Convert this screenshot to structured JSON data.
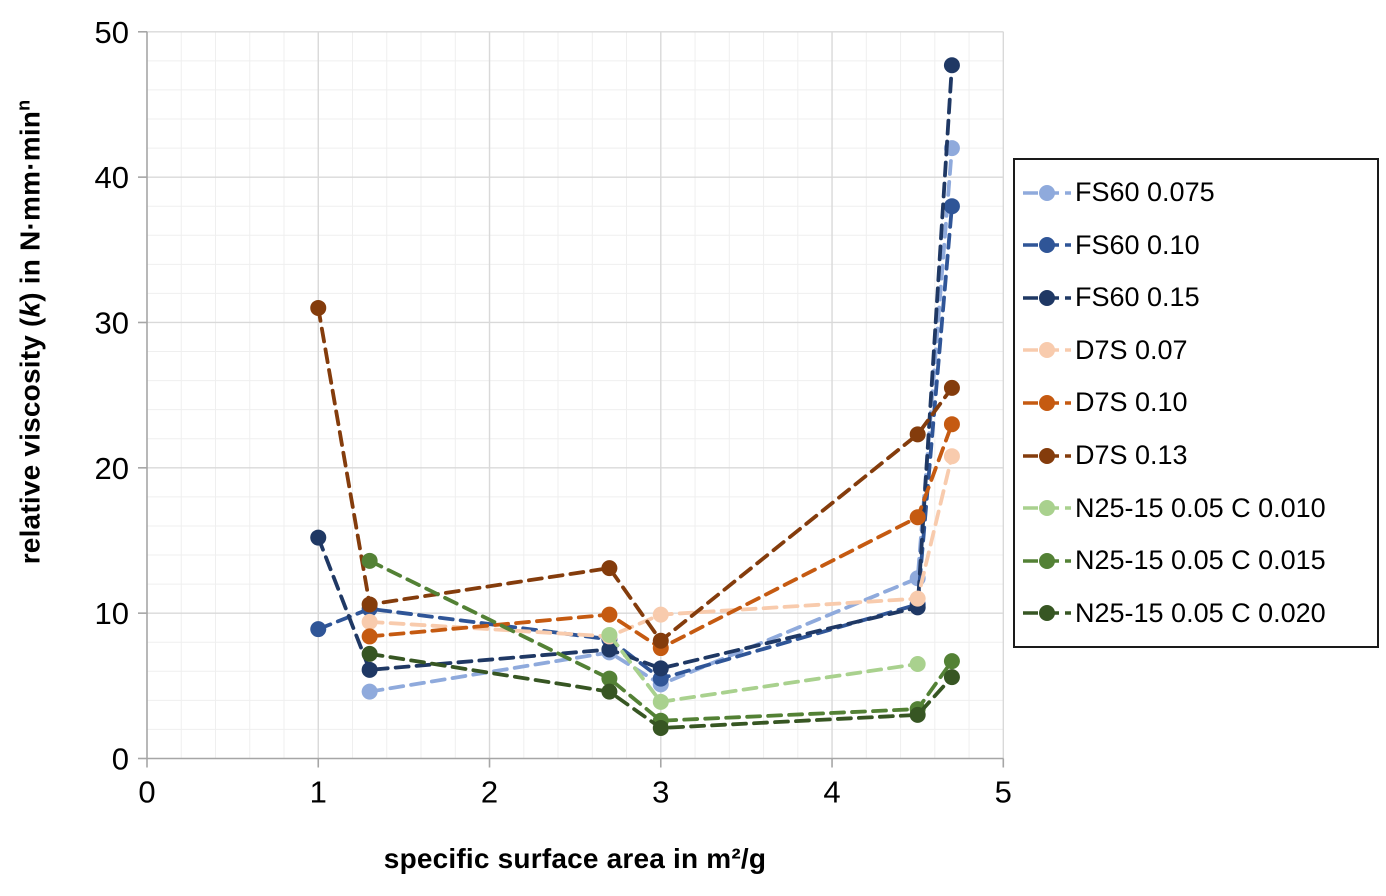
{
  "chart_data": {
    "type": "line",
    "style": {
      "line_dash": "13 8",
      "line_width": 3.8,
      "marker_radius": 8,
      "major_grid_color": "#d9d9d9",
      "minor_grid_color": "#efefef",
      "axis_color": "#a6a6a6",
      "tick_label_color": "#000000",
      "tick_label_size": 31
    },
    "x_axis": {
      "label": "specific surface area in m²/g",
      "min": 0,
      "max": 5,
      "major_ticks": [
        0,
        1,
        2,
        3,
        4,
        5
      ],
      "minor_step": 0.2
    },
    "y_axis": {
      "label_pre": "relative viscosity (",
      "label_var": "k",
      "label_mid": ") in N·mm·min",
      "label_sup": "n",
      "min": 0,
      "max": 50,
      "major_ticks": [
        0,
        10,
        20,
        30,
        40,
        50
      ],
      "minor_step": 2
    },
    "legend_position": "right",
    "series": [
      {
        "name": "FS60 0.075",
        "color": "#8faadc",
        "points": [
          [
            1.3,
            4.6
          ],
          [
            2.7,
            7.3
          ],
          [
            3.0,
            5.1
          ],
          [
            4.5,
            12.4
          ],
          [
            4.7,
            42.0
          ]
        ]
      },
      {
        "name": "FS60 0.10",
        "color": "#2f5597",
        "points": [
          [
            1.0,
            8.9
          ],
          [
            1.3,
            10.3
          ],
          [
            2.7,
            8.2
          ],
          [
            3.0,
            5.5
          ],
          [
            4.5,
            10.6
          ],
          [
            4.7,
            38.0
          ]
        ]
      },
      {
        "name": "FS60 0.15",
        "color": "#1f3864",
        "points": [
          [
            1.0,
            15.2
          ],
          [
            1.3,
            6.1
          ],
          [
            2.7,
            7.5
          ],
          [
            3.0,
            6.2
          ],
          [
            4.5,
            10.4
          ],
          [
            4.7,
            47.7
          ]
        ]
      },
      {
        "name": "D7S 0.07",
        "color": "#f8cbad",
        "points": [
          [
            1.3,
            9.4
          ],
          [
            2.7,
            8.4
          ],
          [
            3.0,
            9.9
          ],
          [
            4.5,
            11.0
          ],
          [
            4.7,
            20.8
          ]
        ]
      },
      {
        "name": "D7S 0.10",
        "color": "#c55a11",
        "points": [
          [
            1.3,
            8.4
          ],
          [
            2.7,
            9.9
          ],
          [
            3.0,
            7.6
          ],
          [
            4.5,
            16.6
          ],
          [
            4.7,
            23.0
          ]
        ]
      },
      {
        "name": "D7S 0.13",
        "color": "#843c0c",
        "points": [
          [
            1.0,
            31.0
          ],
          [
            1.3,
            10.6
          ],
          [
            2.7,
            13.1
          ],
          [
            3.0,
            8.1
          ],
          [
            4.5,
            22.3
          ],
          [
            4.7,
            25.5
          ]
        ]
      },
      {
        "name": "N25-15 0.05 C 0.010",
        "color": "#a9d18e",
        "points": [
          [
            2.7,
            8.5
          ],
          [
            3.0,
            3.9
          ],
          [
            4.5,
            6.5
          ]
        ]
      },
      {
        "name": "N25-15 0.05 C 0.015",
        "color": "#538135",
        "points": [
          [
            1.3,
            13.6
          ],
          [
            2.7,
            5.5
          ],
          [
            3.0,
            2.6
          ],
          [
            4.5,
            3.4
          ],
          [
            4.7,
            6.7
          ]
        ]
      },
      {
        "name": "N25-15 0.05 C 0.020",
        "color": "#375623",
        "points": [
          [
            1.3,
            7.2
          ],
          [
            2.7,
            4.6
          ],
          [
            3.0,
            2.1
          ],
          [
            4.5,
            3.0
          ],
          [
            4.7,
            5.6
          ]
        ]
      }
    ]
  }
}
